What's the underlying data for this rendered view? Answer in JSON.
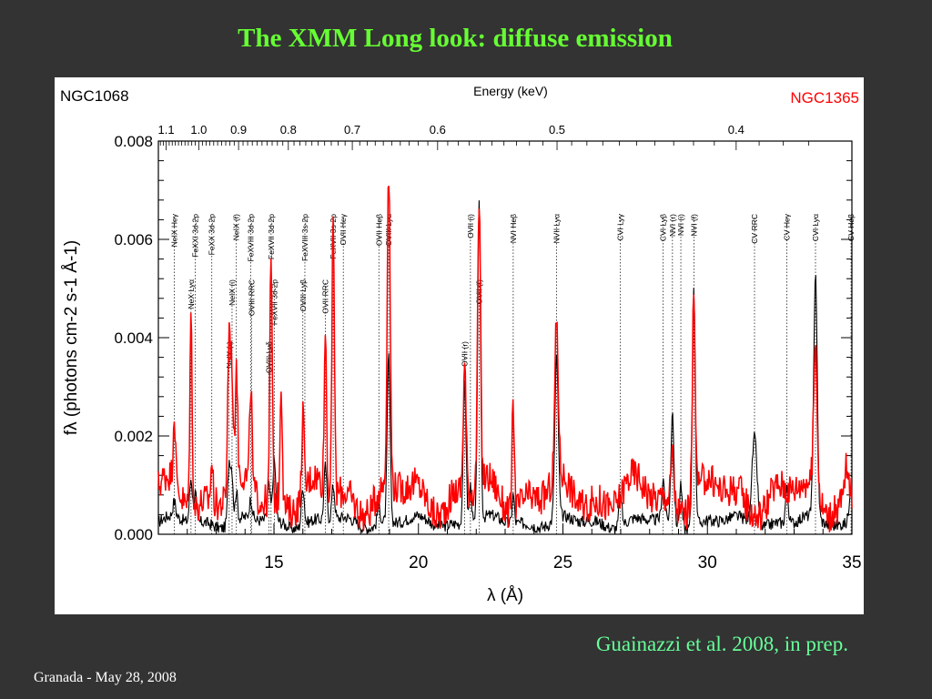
{
  "slide": {
    "title": "The XMM Long look: diffuse emission",
    "citation": "Guainazzi et al. 2008, in prep.",
    "footer": "Granada - May 28, 2008",
    "title_color": "#66ff33",
    "background": "#333333"
  },
  "chart_data": {
    "type": "line",
    "title": "",
    "xlabel": "λ (Å)",
    "ylabel": "fλ (photons cm-2 s-1 Å-1)",
    "top_axis_label": "Energy (keV)",
    "xlim": [
      11.0,
      35.0
    ],
    "ylim": [
      0.0,
      0.008
    ],
    "x_ticks": [
      15,
      20,
      25,
      30,
      35
    ],
    "y_ticks": [
      0.0,
      0.002,
      0.004,
      0.006,
      0.008
    ],
    "y_tick_labels": [
      "0.000",
      "0.002",
      "0.004",
      "0.006",
      "0.008"
    ],
    "top_ticks": [
      {
        "keV": 1.1,
        "label": "1.1"
      },
      {
        "keV": 1.0,
        "label": "1.0"
      },
      {
        "keV": 0.9,
        "label": "0.9"
      },
      {
        "keV": 0.8,
        "label": "0.8"
      },
      {
        "keV": 0.7,
        "label": "0.7"
      },
      {
        "keV": 0.6,
        "label": "0.6"
      },
      {
        "keV": 0.5,
        "label": "0.5"
      },
      {
        "keV": 0.4,
        "label": "0.4"
      }
    ],
    "legend": [
      {
        "name": "NGC1068",
        "color": "#000000",
        "placement": "top-left"
      },
      {
        "name": "NGC1365",
        "color": "#ff0000",
        "placement": "top-right"
      }
    ],
    "line_ids": [
      {
        "label": "NeIX Heγ",
        "x": 11.55,
        "tier": "top"
      },
      {
        "label": "FeXXI 3d-2p",
        "x": 12.28,
        "tier": "top"
      },
      {
        "label": "FeXX 3d-2p",
        "x": 12.85,
        "tier": "top"
      },
      {
        "label": "NeX Lyα",
        "x": 12.13,
        "tier": "mid"
      },
      {
        "label": "NeIX (f)",
        "x": 13.7,
        "tier": "top"
      },
      {
        "label": "NeIX (i)",
        "x": 13.55,
        "tier": "mid"
      },
      {
        "label": "NeIX (r)",
        "x": 13.45,
        "tier": "low"
      },
      {
        "label": "FeXVIII 3d-2p",
        "x": 14.2,
        "tier": "top"
      },
      {
        "label": "OVIII RRC",
        "x": 14.23,
        "tier": "mid"
      },
      {
        "label": "FeXVII 3d-2p",
        "x": 14.9,
        "tier": "top"
      },
      {
        "label": "FeXVII 3d-2p",
        "x": 15.01,
        "tier": "mid"
      },
      {
        "label": "OVIII Lyδ",
        "x": 14.82,
        "tier": "low"
      },
      {
        "label": "FeXVIII 3s-2p",
        "x": 16.07,
        "tier": "top"
      },
      {
        "label": "OVIII Lyβ",
        "x": 16.0,
        "tier": "mid"
      },
      {
        "label": "FeXVII 3s-2p",
        "x": 17.05,
        "tier": "top"
      },
      {
        "label": "OVII RRC",
        "x": 16.78,
        "tier": "mid"
      },
      {
        "label": "OVII Heγ",
        "x": 17.4,
        "tier": "top"
      },
      {
        "label": "OVII Heβ",
        "x": 18.63,
        "tier": "top"
      },
      {
        "label": "OVIII Lyα",
        "x": 18.97,
        "tier": "top"
      },
      {
        "label": "OVII (i)",
        "x": 21.8,
        "tier": "top"
      },
      {
        "label": "OVII (f)",
        "x": 22.1,
        "tier": "mid"
      },
      {
        "label": "OVII (r)",
        "x": 21.6,
        "tier": "low"
      },
      {
        "label": "NVI Heβ",
        "x": 23.28,
        "tier": "top"
      },
      {
        "label": "NVII Lyα",
        "x": 24.78,
        "tier": "top"
      },
      {
        "label": "CVI Lyγ",
        "x": 26.99,
        "tier": "top"
      },
      {
        "label": "CVI Lyβ",
        "x": 28.47,
        "tier": "top"
      },
      {
        "label": "NVI (r)",
        "x": 28.79,
        "tier": "top"
      },
      {
        "label": "NVI (i)",
        "x": 29.08,
        "tier": "top"
      },
      {
        "label": "NVI (f)",
        "x": 29.53,
        "tier": "top"
      },
      {
        "label": "CV RRC",
        "x": 31.63,
        "tier": "top"
      },
      {
        "label": "CV Heγ",
        "x": 32.75,
        "tier": "top"
      },
      {
        "label": "CVI Lyα",
        "x": 33.74,
        "tier": "top"
      },
      {
        "label": "CV Heβ",
        "x": 34.97,
        "tier": "top"
      }
    ],
    "series": [
      {
        "name": "NGC1068",
        "color": "#000000",
        "continuum": 0.00025,
        "peaks": [
          [
            11.55,
            0.0003,
            0.05
          ],
          [
            12.13,
            0.0009,
            0.05
          ],
          [
            12.28,
            0.0006,
            0.04
          ],
          [
            13.45,
            0.0013,
            0.05
          ],
          [
            13.55,
            0.0009,
            0.04
          ],
          [
            13.7,
            0.0006,
            0.04
          ],
          [
            14.2,
            0.0004,
            0.05
          ],
          [
            14.82,
            0.0007,
            0.05
          ],
          [
            15.01,
            0.0012,
            0.05
          ],
          [
            16.0,
            0.0008,
            0.05
          ],
          [
            16.78,
            0.0011,
            0.05
          ],
          [
            17.05,
            0.0007,
            0.05
          ],
          [
            18.63,
            0.0004,
            0.05
          ],
          [
            18.97,
            0.0034,
            0.05
          ],
          [
            21.6,
            0.0029,
            0.05
          ],
          [
            21.8,
            0.0008,
            0.04
          ],
          [
            22.1,
            0.0064,
            0.05
          ],
          [
            23.28,
            0.0006,
            0.04
          ],
          [
            24.78,
            0.0033,
            0.06
          ],
          [
            26.99,
            0.0006,
            0.05
          ],
          [
            28.47,
            0.0008,
            0.05
          ],
          [
            28.79,
            0.0023,
            0.05
          ],
          [
            29.08,
            0.0009,
            0.04
          ],
          [
            29.53,
            0.0048,
            0.05
          ],
          [
            31.63,
            0.0018,
            0.09
          ],
          [
            32.75,
            0.0007,
            0.05
          ],
          [
            33.74,
            0.005,
            0.06
          ],
          [
            34.97,
            0.0008,
            0.06
          ]
        ]
      },
      {
        "name": "NGC1365",
        "color": "#ff0000",
        "continuum": 0.0008,
        "peaks": [
          [
            11.55,
            0.0014,
            0.04
          ],
          [
            12.13,
            0.0039,
            0.04
          ],
          [
            12.85,
            0.0008,
            0.04
          ],
          [
            13.45,
            0.0033,
            0.05
          ],
          [
            13.55,
            0.002,
            0.04
          ],
          [
            13.7,
            0.0024,
            0.04
          ],
          [
            14.2,
            0.0021,
            0.04
          ],
          [
            14.9,
            0.005,
            0.04
          ],
          [
            15.25,
            0.0025,
            0.04
          ],
          [
            16.0,
            0.0017,
            0.04
          ],
          [
            16.78,
            0.0032,
            0.04
          ],
          [
            17.05,
            0.0057,
            0.04
          ],
          [
            18.97,
            0.0064,
            0.05
          ],
          [
            21.6,
            0.0026,
            0.05
          ],
          [
            22.1,
            0.0057,
            0.05
          ],
          [
            23.28,
            0.0022,
            0.04
          ],
          [
            24.78,
            0.0032,
            0.06
          ],
          [
            28.79,
            0.001,
            0.05
          ],
          [
            29.53,
            0.0043,
            0.05
          ],
          [
            33.74,
            0.003,
            0.06
          ],
          [
            34.8,
            0.0006,
            0.05
          ]
        ]
      }
    ]
  }
}
